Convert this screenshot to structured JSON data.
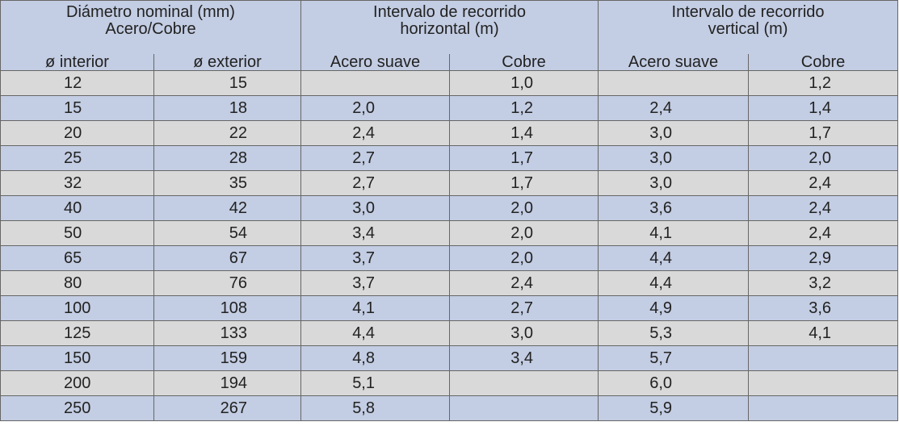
{
  "header": {
    "group1": {
      "line1": "Diámetro nominal (mm)",
      "line2": "Acero/Cobre"
    },
    "group2": {
      "line1": "Intervalo de recorrido",
      "line2": "horizontal (m)"
    },
    "group3": {
      "line1": "Intervalo de recorrido",
      "line2": "vertical (m)"
    },
    "sub": [
      "ø interior",
      "ø exterior",
      "Acero suave",
      "Cobre",
      "Acero suave",
      "Cobre"
    ]
  },
  "rows": [
    [
      "12",
      "15",
      "",
      "1,0",
      "",
      "1,2"
    ],
    [
      "15",
      "18",
      "2,0",
      "1,2",
      "2,4",
      "1,4"
    ],
    [
      "20",
      "22",
      "2,4",
      "1,4",
      "3,0",
      "1,7"
    ],
    [
      "25",
      "28",
      "2,7",
      "1,7",
      "3,0",
      "2,0"
    ],
    [
      "32",
      "35",
      "2,7",
      "1,7",
      "3,0",
      "2,4"
    ],
    [
      "40",
      "42",
      "3,0",
      "2,0",
      "3,6",
      "2,4"
    ],
    [
      "50",
      "54",
      "3,4",
      "2,0",
      "4,1",
      "2,4"
    ],
    [
      "65",
      "67",
      "3,7",
      "2,0",
      "4,4",
      "2,9"
    ],
    [
      "80",
      "76",
      "3,7",
      "2,4",
      "4,4",
      "3,2"
    ],
    [
      "100",
      "108",
      "4,1",
      "2,7",
      "4,9",
      "3,6"
    ],
    [
      "125",
      "133",
      "4,4",
      "3,0",
      "5,3",
      "4,1"
    ],
    [
      "150",
      "159",
      "4,8",
      "3,4",
      "5,7",
      ""
    ],
    [
      "200",
      "194",
      "5,1",
      "",
      "6,0",
      ""
    ],
    [
      "250",
      "267",
      "5,8",
      "",
      "5,9",
      ""
    ]
  ]
}
